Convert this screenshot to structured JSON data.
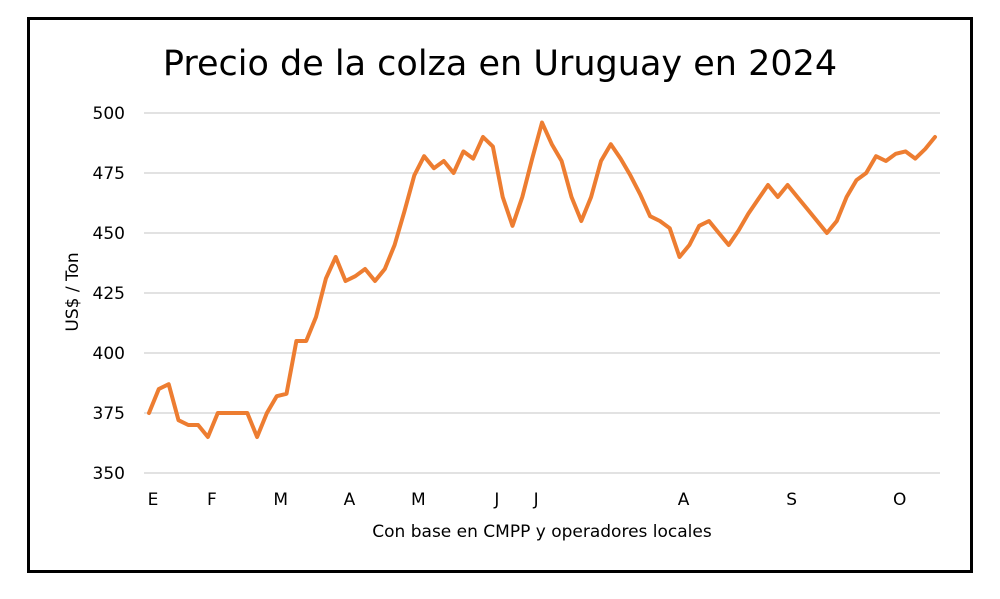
{
  "chart_data": {
    "type": "line",
    "title": "Precio de la colza en Uruguay en 2024",
    "xlabel": "Con base en CMPP y operadores locales",
    "ylabel": "US$ / Ton",
    "ylim": [
      350,
      500
    ],
    "yticks": [
      350,
      375,
      400,
      425,
      450,
      475,
      500
    ],
    "grid": true,
    "line_color": "#ED7D31",
    "month_ticks": [
      {
        "label": "E",
        "index": 0
      },
      {
        "label": "F",
        "index": 6
      },
      {
        "label": "M",
        "index": 13
      },
      {
        "label": "A",
        "index": 20
      },
      {
        "label": "M",
        "index": 27
      },
      {
        "label": "J",
        "index": 35
      },
      {
        "label": "J",
        "index": 39
      },
      {
        "label": "A",
        "index": 54
      },
      {
        "label": "S",
        "index": 65
      },
      {
        "label": "O",
        "index": 76
      }
    ],
    "values": [
      375,
      385,
      387,
      372,
      370,
      370,
      365,
      375,
      375,
      375,
      375,
      365,
      375,
      382,
      383,
      405,
      405,
      415,
      431,
      440,
      430,
      432,
      435,
      430,
      435,
      445,
      459,
      474,
      482,
      477,
      480,
      475,
      484,
      481,
      490,
      486,
      465,
      453,
      465,
      481,
      496,
      487,
      480,
      465,
      455,
      465,
      480,
      487,
      481,
      474,
      466,
      457,
      455,
      452,
      440,
      445,
      453,
      455,
      450,
      445,
      451,
      458,
      464,
      470,
      465,
      470,
      465,
      460,
      455,
      450,
      455,
      465,
      472,
      475,
      482,
      480,
      483,
      484,
      481,
      485,
      490
    ]
  }
}
